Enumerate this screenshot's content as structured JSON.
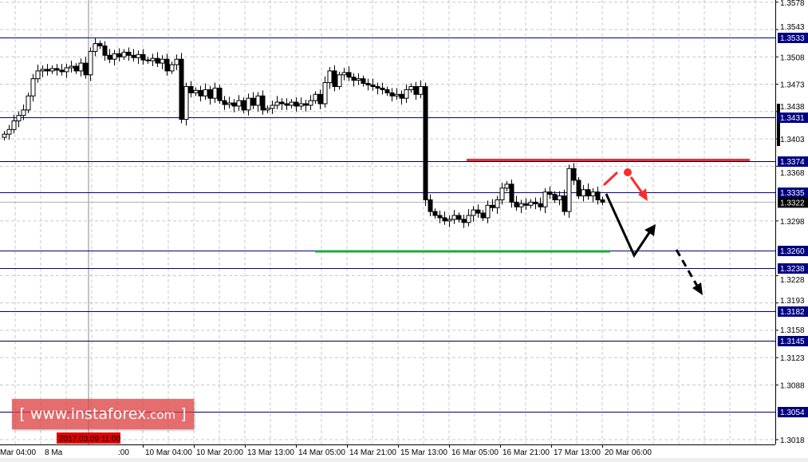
{
  "chart_data": {
    "type": "candlestick",
    "title": "",
    "ylim": [
      1.3018,
      1.3578
    ],
    "grid": true,
    "price_ticks": [
      "1.3578",
      "1.3543",
      "1.3508",
      "1.3473",
      "1.3438",
      "1.3403",
      "1.3368",
      "1.3298",
      "1.3228",
      "1.3193",
      "1.3158",
      "1.3123",
      "1.3088",
      "1.3018"
    ],
    "time_labels": [
      "Mar 04:00",
      "8 Ma",
      ":00",
      "10 Mar 04:00",
      "10 Mar 20:00",
      "13 Mar 13:00",
      "14 Mar 05:00",
      "14 Mar 21:00",
      "15 Mar 13:00",
      "16 Mar 05:00",
      "16 Mar 21:00",
      "17 Mar 13:00",
      "20 Mar 06:00"
    ],
    "crosshair_time_label": "2017.03.09 11:00",
    "close": [
      1.3409,
      1.3415,
      1.3426,
      1.3433,
      1.344,
      1.3458,
      1.348,
      1.349,
      1.3492,
      1.349,
      1.3493,
      1.3491,
      1.3489,
      1.3494,
      1.3496,
      1.349,
      1.35,
      1.3485,
      1.3515,
      1.3525,
      1.3522,
      1.351,
      1.3505,
      1.3512,
      1.3508,
      1.3514,
      1.351,
      1.3507,
      1.3511,
      1.3504,
      1.3503,
      1.3506,
      1.35,
      1.3505,
      1.349,
      1.3498,
      1.3505,
      1.3428,
      1.347,
      1.3462,
      1.3465,
      1.3458,
      1.3466,
      1.3455,
      1.3468,
      1.3452,
      1.3447,
      1.3449,
      1.3445,
      1.3452,
      1.344,
      1.3455,
      1.3446,
      1.3458,
      1.344,
      1.3442,
      1.3446,
      1.345,
      1.3448,
      1.3446,
      1.345,
      1.3445,
      1.3448,
      1.3446,
      1.3452,
      1.346,
      1.3448,
      1.3475,
      1.349,
      1.347,
      1.3485,
      1.3488,
      1.3482,
      1.3478,
      1.348,
      1.3474,
      1.3472,
      1.347,
      1.3468,
      1.3466,
      1.3462,
      1.3458,
      1.346,
      1.3455,
      1.3466,
      1.347,
      1.346,
      1.347,
      1.3325,
      1.331,
      1.3305,
      1.3302,
      1.3298,
      1.33,
      1.3305,
      1.33,
      1.3296,
      1.3305,
      1.3312,
      1.3308,
      1.3302,
      1.3318,
      1.3315,
      1.3325,
      1.334,
      1.3345,
      1.3322,
      1.3316,
      1.332,
      1.3318,
      1.3322,
      1.332,
      1.3316,
      1.3335,
      1.3332,
      1.3325,
      1.333,
      1.331,
      1.3365,
      1.335,
      1.333,
      1.3338,
      1.333,
      1.3335,
      1.3325,
      1.3322
    ],
    "levels": [
      {
        "price": "1.3533",
        "color": "#000080"
      },
      {
        "price": "1.3431",
        "color": "#000080"
      },
      {
        "price": "1.3374",
        "color": "#000033"
      },
      {
        "price": "1.3335",
        "color": "#000080"
      },
      {
        "price": "1.3260",
        "color": "#000080"
      },
      {
        "price": "1.3238",
        "color": "#000080"
      },
      {
        "price": "1.3182",
        "color": "#000080"
      },
      {
        "price": "1.3145",
        "color": "#000033"
      },
      {
        "price": "1.3054",
        "color": "#000080"
      }
    ],
    "bid": {
      "price": "1.3322",
      "color": "#000000"
    },
    "resistance": {
      "price": 1.3376,
      "color": "#ff2a2a"
    },
    "support": {
      "price": 1.3259,
      "color": "#1aab3c"
    },
    "level_label_color": "#000080",
    "crosshair_color": "#e00000"
  },
  "watermark": {
    "open": "[",
    "text": "www.instaforex",
    ".com": "",
    "suffix": ".com",
    "close": "]"
  }
}
